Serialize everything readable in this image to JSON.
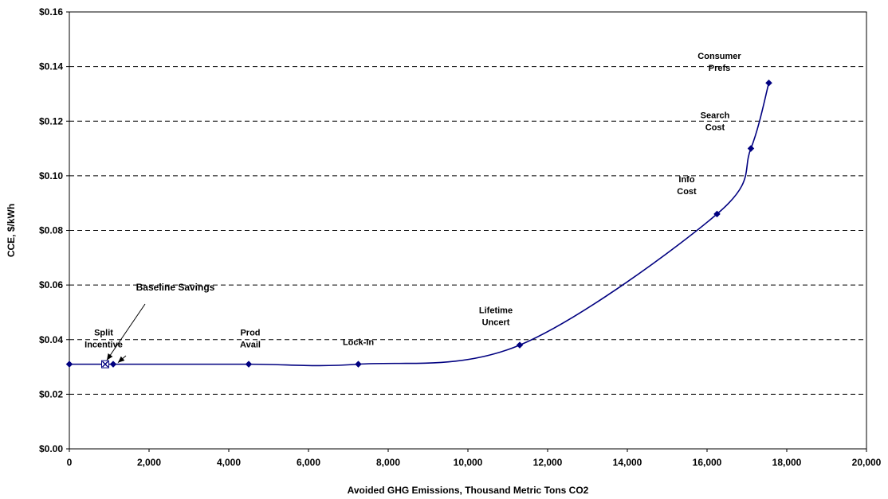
{
  "chart_data": {
    "type": "line",
    "xlabel": "Avoided GHG Emissions, Thousand Metric Tons CO2",
    "ylabel": "CCE, $/kWh",
    "xlim": [
      0,
      20000
    ],
    "ylim": [
      0,
      0.16
    ],
    "x_ticks": [
      0,
      2000,
      4000,
      6000,
      8000,
      10000,
      12000,
      14000,
      16000,
      18000,
      20000
    ],
    "x_tick_labels": [
      "0",
      "2,000",
      "4,000",
      "6,000",
      "8,000",
      "10,000",
      "12,000",
      "14,000",
      "16,000",
      "18,000",
      "20,000"
    ],
    "y_ticks": [
      0,
      0.02,
      0.04,
      0.06,
      0.08,
      0.1,
      0.12,
      0.14,
      0.16
    ],
    "y_tick_labels": [
      "$0.00",
      "$0.02",
      "$0.04",
      "$0.06",
      "$0.08",
      "$0.10",
      "$0.12",
      "$0.14",
      "$0.16"
    ],
    "grid": "horizontal dashed",
    "series_color": "#000080",
    "points": [
      {
        "x": 0,
        "y": 0.031,
        "label": ""
      },
      {
        "x": 1100,
        "y": 0.031,
        "label": "Split\nIncentive"
      },
      {
        "x": 4500,
        "y": 0.031,
        "label": "Prod\nAvail"
      },
      {
        "x": 7250,
        "y": 0.031,
        "label": "Lock-In"
      },
      {
        "x": 11300,
        "y": 0.038,
        "label": "Lifetime\nUncert"
      },
      {
        "x": 16250,
        "y": 0.086,
        "label": "Info\nCost"
      },
      {
        "x": 17100,
        "y": 0.11,
        "label": "Search\nCost"
      },
      {
        "x": 17550,
        "y": 0.134,
        "label": "Consumer\nPrefs"
      }
    ],
    "baseline_marker": {
      "x": 900,
      "y": 0.031,
      "label": "Baseline Savings"
    }
  }
}
